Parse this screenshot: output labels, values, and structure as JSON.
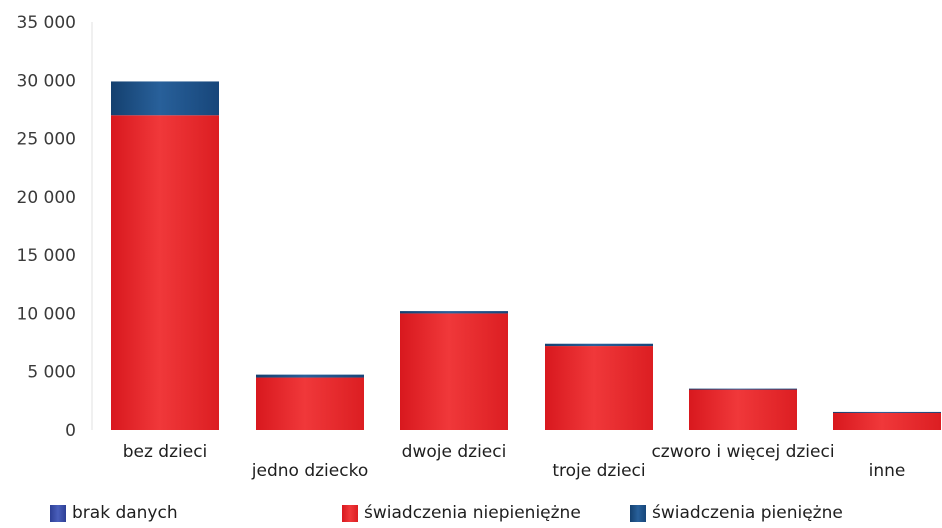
{
  "chart_data": {
    "type": "bar",
    "stacked": true,
    "categories": [
      "bez dzieci",
      "jedno dziecko",
      "dwoje dzieci",
      "troje dzieci",
      "czworo i więcej dzieci",
      "inne"
    ],
    "y_tick_labels": [
      "0",
      "5 000",
      "10 000",
      "15 000",
      "20 000",
      "25 000",
      "30 000",
      "35 000"
    ],
    "ylim": [
      0,
      35000
    ],
    "series": [
      {
        "name": "brak danych",
        "color": "#3b4fa8",
        "values": [
          0,
          0,
          0,
          0,
          0,
          0
        ]
      },
      {
        "name": "świadczenia niepieniężne",
        "color": "#e8262a",
        "values": [
          27000,
          4500,
          10000,
          7200,
          3500,
          1500
        ]
      },
      {
        "name": "świadczenia pieniężne",
        "color": "#1f4f8a",
        "values": [
          2900,
          250,
          200,
          200,
          50,
          50
        ]
      }
    ],
    "legend": [
      "brak danych",
      "świadczenia niepieniężne",
      "świadczenia pieniężne"
    ],
    "legend_placement": "bottom",
    "grid": false
  }
}
